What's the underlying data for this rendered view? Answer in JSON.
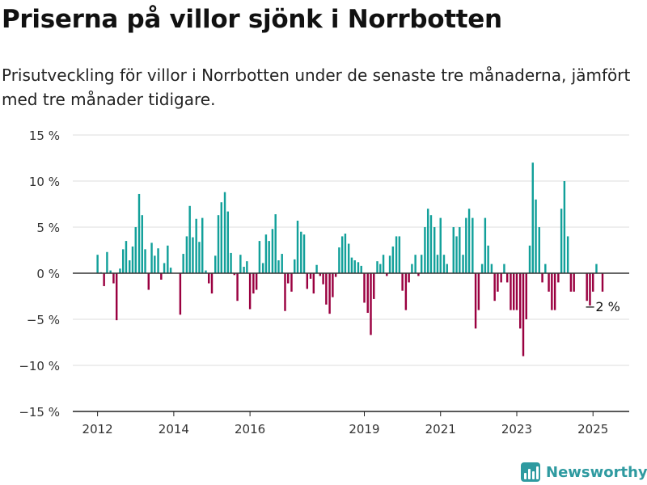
{
  "title": "Priserna på villor sjönk i Norrbotten",
  "subtitle": "Prisutveckling för villor i Norrbotten under de senaste tre månaderna, jämfört med tre månader tidigare.",
  "brand": "Newsworthy",
  "colors": {
    "positive": "#12a09a",
    "negative": "#9a0040",
    "grid": "#dddddd",
    "zero_line": "#333333",
    "brand": "#2e9aa0"
  },
  "annotation": "−2 %",
  "chart_data": {
    "type": "bar",
    "xlabel": "",
    "ylabel": "",
    "ylim": [
      -15,
      15
    ],
    "y_ticks": [
      15,
      10,
      5,
      0,
      -5,
      -10,
      -15
    ],
    "y_tick_labels": [
      "15 %",
      "10 %",
      "5 %",
      "0 %",
      "−5 %",
      "−10 %",
      "−15 %"
    ],
    "x_ticks": [
      2012,
      2014,
      2016,
      2019,
      2021,
      2023,
      2025
    ],
    "x_tick_labels": [
      "2012",
      "2014",
      "2016",
      "2019",
      "2021",
      "2023",
      "2025"
    ],
    "x_range": [
      2011.35,
      2025.95
    ],
    "grid": true,
    "bars": [
      {
        "x": 2012.0,
        "y": 2.0
      },
      {
        "x": 2012.09,
        "y": 0.1
      },
      {
        "x": 2012.17,
        "y": -1.4
      },
      {
        "x": 2012.25,
        "y": 2.3
      },
      {
        "x": 2012.34,
        "y": 0.3
      },
      {
        "x": 2012.42,
        "y": -1.1
      },
      {
        "x": 2012.5,
        "y": -5.1
      },
      {
        "x": 2012.59,
        "y": 0.5
      },
      {
        "x": 2012.67,
        "y": 2.6
      },
      {
        "x": 2012.75,
        "y": 3.5
      },
      {
        "x": 2012.84,
        "y": 1.4
      },
      {
        "x": 2012.92,
        "y": 2.9
      },
      {
        "x": 2013.0,
        "y": 5.0
      },
      {
        "x": 2013.09,
        "y": 8.6
      },
      {
        "x": 2013.17,
        "y": 6.3
      },
      {
        "x": 2013.25,
        "y": 2.6
      },
      {
        "x": 2013.34,
        "y": -1.8
      },
      {
        "x": 2013.42,
        "y": 3.3
      },
      {
        "x": 2013.5,
        "y": 1.9
      },
      {
        "x": 2013.59,
        "y": 2.7
      },
      {
        "x": 2013.67,
        "y": -0.7
      },
      {
        "x": 2013.75,
        "y": 1.1
      },
      {
        "x": 2013.84,
        "y": 3.0
      },
      {
        "x": 2013.92,
        "y": 0.6
      },
      {
        "x": 2014.17,
        "y": -4.5
      },
      {
        "x": 2014.25,
        "y": 2.1
      },
      {
        "x": 2014.34,
        "y": 4.0
      },
      {
        "x": 2014.42,
        "y": 7.3
      },
      {
        "x": 2014.5,
        "y": 3.9
      },
      {
        "x": 2014.59,
        "y": 5.9
      },
      {
        "x": 2014.67,
        "y": 3.4
      },
      {
        "x": 2014.75,
        "y": 6.0
      },
      {
        "x": 2014.84,
        "y": 0.3
      },
      {
        "x": 2014.92,
        "y": -1.1
      },
      {
        "x": 2015.0,
        "y": -2.2
      },
      {
        "x": 2015.09,
        "y": 1.9
      },
      {
        "x": 2015.17,
        "y": 6.3
      },
      {
        "x": 2015.25,
        "y": 7.7
      },
      {
        "x": 2015.34,
        "y": 8.8
      },
      {
        "x": 2015.42,
        "y": 6.7
      },
      {
        "x": 2015.5,
        "y": 2.2
      },
      {
        "x": 2015.59,
        "y": -0.2
      },
      {
        "x": 2015.67,
        "y": -3.0
      },
      {
        "x": 2015.75,
        "y": 2.0
      },
      {
        "x": 2015.84,
        "y": 0.7
      },
      {
        "x": 2015.92,
        "y": 1.3
      },
      {
        "x": 2016.0,
        "y": -3.9
      },
      {
        "x": 2016.09,
        "y": -2.2
      },
      {
        "x": 2016.17,
        "y": -1.8
      },
      {
        "x": 2016.25,
        "y": 3.5
      },
      {
        "x": 2016.34,
        "y": 1.1
      },
      {
        "x": 2016.42,
        "y": 4.2
      },
      {
        "x": 2016.5,
        "y": 3.5
      },
      {
        "x": 2016.59,
        "y": 4.8
      },
      {
        "x": 2016.67,
        "y": 6.4
      },
      {
        "x": 2016.75,
        "y": 1.4
      },
      {
        "x": 2016.84,
        "y": 2.1
      },
      {
        "x": 2016.92,
        "y": -4.1
      },
      {
        "x": 2017.0,
        "y": -1.1
      },
      {
        "x": 2017.09,
        "y": -2.0
      },
      {
        "x": 2017.17,
        "y": 1.5
      },
      {
        "x": 2017.25,
        "y": 5.7
      },
      {
        "x": 2017.34,
        "y": 4.5
      },
      {
        "x": 2017.42,
        "y": 4.2
      },
      {
        "x": 2017.5,
        "y": -1.7
      },
      {
        "x": 2017.59,
        "y": -0.6
      },
      {
        "x": 2017.67,
        "y": -2.2
      },
      {
        "x": 2017.75,
        "y": 0.9
      },
      {
        "x": 2017.84,
        "y": -0.3
      },
      {
        "x": 2017.92,
        "y": -1.2
      },
      {
        "x": 2018.0,
        "y": -3.4
      },
      {
        "x": 2018.09,
        "y": -4.4
      },
      {
        "x": 2018.17,
        "y": -2.6
      },
      {
        "x": 2018.25,
        "y": -0.4
      },
      {
        "x": 2018.34,
        "y": 2.8
      },
      {
        "x": 2018.42,
        "y": 4.0
      },
      {
        "x": 2018.5,
        "y": 4.3
      },
      {
        "x": 2018.59,
        "y": 3.2
      },
      {
        "x": 2018.67,
        "y": 1.7
      },
      {
        "x": 2018.75,
        "y": 1.4
      },
      {
        "x": 2018.84,
        "y": 1.2
      },
      {
        "x": 2018.92,
        "y": 0.8
      },
      {
        "x": 2019.0,
        "y": -3.2
      },
      {
        "x": 2019.09,
        "y": -4.3
      },
      {
        "x": 2019.17,
        "y": -6.7
      },
      {
        "x": 2019.25,
        "y": -2.8
      },
      {
        "x": 2019.34,
        "y": 1.3
      },
      {
        "x": 2019.42,
        "y": 1.0
      },
      {
        "x": 2019.5,
        "y": 2.0
      },
      {
        "x": 2019.59,
        "y": -0.3
      },
      {
        "x": 2019.67,
        "y": 1.9
      },
      {
        "x": 2019.75,
        "y": 2.9
      },
      {
        "x": 2019.84,
        "y": 4.0
      },
      {
        "x": 2019.92,
        "y": 4.0
      },
      {
        "x": 2020.0,
        "y": -1.9
      },
      {
        "x": 2020.09,
        "y": -4.0
      },
      {
        "x": 2020.17,
        "y": -1.0
      },
      {
        "x": 2020.25,
        "y": 1.0
      },
      {
        "x": 2020.34,
        "y": 2.0
      },
      {
        "x": 2020.42,
        "y": -0.3
      },
      {
        "x": 2020.5,
        "y": 2.0
      },
      {
        "x": 2020.59,
        "y": 5.0
      },
      {
        "x": 2020.67,
        "y": 7.0
      },
      {
        "x": 2020.75,
        "y": 6.3
      },
      {
        "x": 2020.84,
        "y": 5.0
      },
      {
        "x": 2020.92,
        "y": 2.0
      },
      {
        "x": 2021.0,
        "y": 6.0
      },
      {
        "x": 2021.09,
        "y": 2.0
      },
      {
        "x": 2021.17,
        "y": 1.0
      },
      {
        "x": 2021.34,
        "y": 5.0
      },
      {
        "x": 2021.42,
        "y": 4.0
      },
      {
        "x": 2021.5,
        "y": 5.0
      },
      {
        "x": 2021.59,
        "y": 2.0
      },
      {
        "x": 2021.67,
        "y": 6.0
      },
      {
        "x": 2021.75,
        "y": 7.0
      },
      {
        "x": 2021.84,
        "y": 6.0
      },
      {
        "x": 2021.92,
        "y": -6.0
      },
      {
        "x": 2022.0,
        "y": -4.0
      },
      {
        "x": 2022.09,
        "y": 1.0
      },
      {
        "x": 2022.17,
        "y": 6.0
      },
      {
        "x": 2022.25,
        "y": 3.0
      },
      {
        "x": 2022.34,
        "y": 1.0
      },
      {
        "x": 2022.42,
        "y": -3.0
      },
      {
        "x": 2022.5,
        "y": -2.0
      },
      {
        "x": 2022.59,
        "y": -1.0
      },
      {
        "x": 2022.67,
        "y": 1.0
      },
      {
        "x": 2022.75,
        "y": -1.0
      },
      {
        "x": 2022.84,
        "y": -4.0
      },
      {
        "x": 2022.92,
        "y": -4.0
      },
      {
        "x": 2023.0,
        "y": -4.0
      },
      {
        "x": 2023.09,
        "y": -6.0
      },
      {
        "x": 2023.17,
        "y": -9.0
      },
      {
        "x": 2023.25,
        "y": -5.0
      },
      {
        "x": 2023.34,
        "y": 3.0
      },
      {
        "x": 2023.42,
        "y": 12.0
      },
      {
        "x": 2023.5,
        "y": 8.0
      },
      {
        "x": 2023.59,
        "y": 5.0
      },
      {
        "x": 2023.67,
        "y": -1.0
      },
      {
        "x": 2023.75,
        "y": 1.0
      },
      {
        "x": 2023.84,
        "y": -2.0
      },
      {
        "x": 2023.92,
        "y": -4.0
      },
      {
        "x": 2024.0,
        "y": -4.0
      },
      {
        "x": 2024.09,
        "y": -1.0
      },
      {
        "x": 2024.17,
        "y": 7.0
      },
      {
        "x": 2024.25,
        "y": 10.0
      },
      {
        "x": 2024.34,
        "y": 4.0
      },
      {
        "x": 2024.42,
        "y": -2.0
      },
      {
        "x": 2024.5,
        "y": -2.0
      },
      {
        "x": 2024.84,
        "y": -3.0
      },
      {
        "x": 2024.92,
        "y": -3.5
      },
      {
        "x": 2025.0,
        "y": -2.0
      },
      {
        "x": 2025.09,
        "y": 1.0
      },
      {
        "x": 2025.25,
        "y": -2.0
      }
    ]
  }
}
